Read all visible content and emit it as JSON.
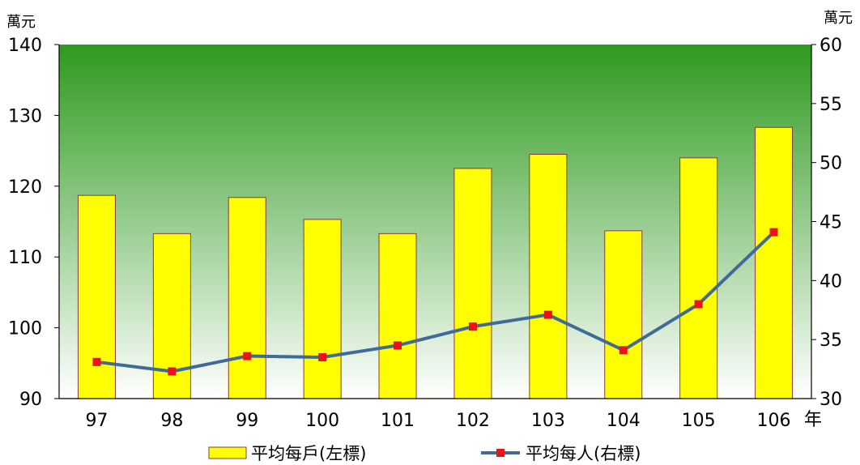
{
  "chart_data": {
    "type": "bar+line",
    "categories": [
      "97",
      "98",
      "99",
      "100",
      "101",
      "102",
      "103",
      "104",
      "105",
      "106"
    ],
    "x_unit": "年",
    "left_axis": {
      "unit": "萬元",
      "ylim": [
        90,
        140
      ],
      "ticks": [
        90,
        100,
        110,
        120,
        130,
        140
      ]
    },
    "right_axis": {
      "unit": "萬元",
      "ylim": [
        30,
        60
      ],
      "ticks": [
        30,
        35,
        40,
        45,
        50,
        55,
        60
      ]
    },
    "series": [
      {
        "name": "平均每戶(左標)",
        "type": "bar",
        "axis": "left",
        "values": [
          118.7,
          113.3,
          118.4,
          115.3,
          113.3,
          122.5,
          124.5,
          113.7,
          124.0,
          128.3
        ]
      },
      {
        "name": "平均每人(右標)",
        "type": "line",
        "axis": "right",
        "values": [
          33.1,
          32.3,
          33.6,
          33.5,
          34.5,
          36.1,
          37.1,
          34.1,
          38.0,
          44.1
        ]
      }
    ],
    "colors": {
      "bar_fill": "#ffff00",
      "bar_stroke": "#8b3a3a",
      "line": "#3f6a9a",
      "marker": "#e8141b",
      "bg_top": "#2e9a1e",
      "bg_bottom": "#ffffff"
    },
    "grid": false,
    "legend": "bottom"
  }
}
